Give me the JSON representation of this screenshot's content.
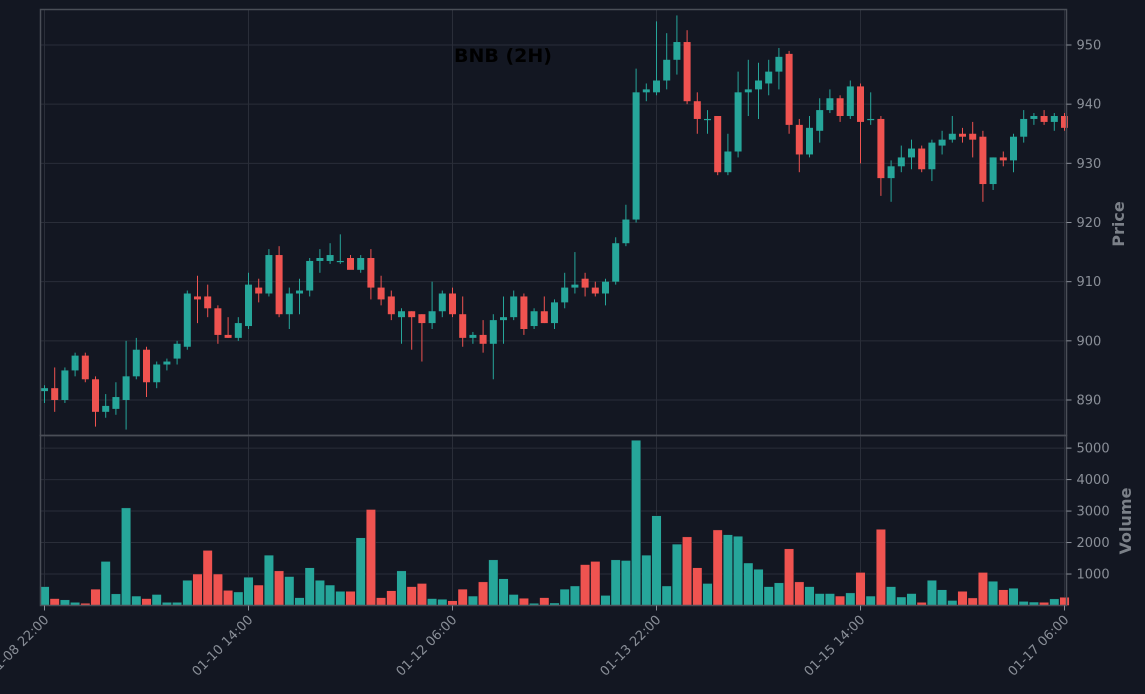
{
  "chart_data": {
    "type": "candlestick",
    "title": "BNB (2H)",
    "colors": {
      "background": "#131722",
      "up": "#26a69a",
      "down": "#ef5350",
      "grid": "#2a2e39",
      "axis": "#8a8f98",
      "frame": "#4a4e57"
    },
    "price_axis": {
      "label": "Price",
      "ylim": [
        884,
        956
      ],
      "ticks": [
        890,
        900,
        910,
        920,
        930,
        940,
        950
      ]
    },
    "volume_axis": {
      "label": "Volume",
      "ylim": [
        0,
        5400
      ],
      "ticks": [
        1000,
        2000,
        3000,
        4000,
        5000
      ]
    },
    "x_ticks": [
      {
        "index": 0,
        "label": "01-08 22:00"
      },
      {
        "index": 20,
        "label": "01-10 14:00"
      },
      {
        "index": 40,
        "label": "01-12 06:00"
      },
      {
        "index": 60,
        "label": "01-13 22:00"
      },
      {
        "index": 80,
        "label": "01-15 14:00"
      },
      {
        "index": 100,
        "label": "01-17 06:00"
      }
    ],
    "ohlc": [
      [
        891.5,
        892.5,
        889.5,
        892.0
      ],
      [
        892.0,
        895.5,
        888.0,
        890.0
      ],
      [
        890.0,
        895.5,
        889.5,
        895.0
      ],
      [
        895.0,
        898.0,
        894.0,
        897.5
      ],
      [
        897.5,
        898.0,
        893.0,
        893.5
      ],
      [
        893.5,
        894.0,
        885.5,
        888.0
      ],
      [
        888.0,
        891.0,
        887.0,
        889.0
      ],
      [
        888.5,
        893.0,
        887.5,
        890.5
      ],
      [
        890.0,
        900.0,
        885.0,
        894.0
      ],
      [
        894.0,
        900.5,
        893.5,
        898.5
      ],
      [
        898.5,
        899.0,
        890.5,
        893.0
      ],
      [
        893.0,
        896.5,
        892.0,
        896.0
      ],
      [
        896.0,
        897.0,
        895.0,
        896.5
      ],
      [
        897.0,
        900.0,
        896.0,
        899.5
      ],
      [
        899.0,
        908.5,
        898.5,
        908.0
      ],
      [
        907.5,
        911.0,
        903.0,
        907.0
      ],
      [
        907.5,
        909.5,
        904.0,
        905.5
      ],
      [
        905.5,
        906.0,
        899.5,
        901.0
      ],
      [
        901.0,
        904.0,
        900.5,
        900.5
      ],
      [
        900.5,
        904.0,
        900.0,
        903.0
      ],
      [
        902.5,
        911.5,
        902.0,
        909.5
      ],
      [
        909.0,
        910.5,
        906.5,
        908.0
      ],
      [
        908.0,
        915.5,
        907.5,
        914.5
      ],
      [
        914.5,
        916.0,
        904.0,
        904.5
      ],
      [
        904.5,
        909.0,
        902.0,
        908.0
      ],
      [
        908.0,
        910.5,
        904.5,
        908.5
      ],
      [
        908.5,
        914.0,
        907.5,
        913.5
      ],
      [
        913.5,
        915.5,
        911.5,
        914.0
      ],
      [
        913.5,
        916.5,
        913.0,
        914.5
      ],
      [
        913.5,
        918.0,
        913.0,
        913.5
      ],
      [
        914.0,
        914.5,
        912.5,
        912.0
      ],
      [
        912.0,
        914.5,
        911.5,
        914.0
      ],
      [
        914.0,
        915.5,
        907.0,
        909.0
      ],
      [
        909.0,
        911.0,
        906.0,
        907.0
      ],
      [
        907.5,
        908.5,
        903.5,
        904.5
      ],
      [
        904.0,
        905.5,
        899.5,
        905.0
      ],
      [
        905.0,
        905.0,
        898.5,
        904.0
      ],
      [
        904.5,
        904.5,
        896.5,
        903.0
      ],
      [
        903.0,
        910.0,
        902.0,
        905.0
      ],
      [
        905.0,
        908.5,
        904.0,
        908.0
      ],
      [
        908.0,
        909.0,
        904.0,
        904.5
      ],
      [
        904.5,
        907.5,
        899.0,
        900.5
      ],
      [
        900.5,
        901.5,
        899.5,
        901.0
      ],
      [
        901.0,
        903.5,
        898.0,
        899.5
      ],
      [
        899.5,
        904.5,
        893.5,
        903.5
      ],
      [
        903.5,
        907.5,
        899.5,
        904.0
      ],
      [
        904.0,
        908.5,
        903.5,
        907.5
      ],
      [
        907.5,
        908.0,
        901.0,
        902.0
      ],
      [
        902.5,
        905.5,
        902.0,
        905.0
      ],
      [
        905.0,
        907.5,
        903.0,
        903.0
      ],
      [
        903.0,
        907.0,
        902.0,
        906.5
      ],
      [
        906.5,
        911.5,
        905.5,
        909.0
      ],
      [
        909.0,
        915.0,
        908.0,
        909.5
      ],
      [
        910.5,
        911.5,
        907.5,
        909.0
      ],
      [
        909.0,
        910.0,
        907.5,
        908.0
      ],
      [
        908.0,
        910.5,
        906.0,
        910.0
      ],
      [
        910.0,
        917.5,
        909.5,
        916.5
      ],
      [
        916.5,
        923.0,
        916.0,
        920.5
      ],
      [
        920.5,
        946.0,
        920.0,
        942.0
      ],
      [
        942.0,
        943.5,
        940.5,
        942.5
      ],
      [
        942.0,
        954.0,
        941.5,
        944.0
      ],
      [
        944.0,
        952.0,
        942.5,
        947.5
      ],
      [
        947.5,
        955.0,
        945.0,
        950.5
      ],
      [
        950.5,
        952.5,
        940.0,
        940.5
      ],
      [
        940.5,
        942.0,
        935.0,
        937.5
      ],
      [
        937.5,
        939.0,
        935.0,
        937.5
      ],
      [
        938.0,
        938.0,
        928.0,
        928.5
      ],
      [
        928.5,
        935.0,
        928.0,
        932.0
      ],
      [
        932.0,
        945.5,
        931.0,
        942.0
      ],
      [
        942.0,
        947.5,
        938.0,
        942.5
      ],
      [
        942.5,
        947.0,
        937.5,
        944.0
      ],
      [
        943.5,
        947.5,
        941.5,
        945.5
      ],
      [
        945.5,
        949.5,
        942.5,
        948.0
      ],
      [
        948.5,
        949.0,
        935.0,
        936.5
      ],
      [
        936.5,
        937.5,
        928.5,
        931.5
      ],
      [
        931.5,
        938.0,
        931.0,
        936.0
      ],
      [
        935.5,
        941.0,
        933.5,
        939.0
      ],
      [
        939.0,
        942.5,
        938.5,
        941.0
      ],
      [
        941.0,
        941.5,
        937.0,
        938.0
      ],
      [
        938.0,
        944.0,
        937.5,
        943.0
      ],
      [
        943.0,
        943.5,
        930.0,
        937.0
      ],
      [
        937.5,
        942.0,
        936.5,
        937.5
      ],
      [
        937.5,
        938.0,
        924.5,
        927.5
      ],
      [
        927.5,
        930.5,
        923.5,
        929.5
      ],
      [
        929.5,
        933.0,
        928.5,
        931.0
      ],
      [
        931.0,
        934.0,
        929.0,
        932.5
      ],
      [
        932.5,
        933.0,
        928.5,
        929.0
      ],
      [
        929.0,
        934.0,
        927.0,
        933.5
      ],
      [
        933.0,
        935.5,
        931.5,
        934.0
      ],
      [
        934.0,
        938.0,
        933.5,
        935.0
      ],
      [
        935.0,
        936.0,
        933.5,
        934.5
      ],
      [
        935.0,
        937.0,
        931.0,
        934.0
      ],
      [
        934.5,
        935.5,
        923.5,
        926.5
      ],
      [
        926.5,
        931.0,
        925.5,
        931.0
      ],
      [
        931.0,
        932.0,
        929.5,
        930.5
      ],
      [
        930.5,
        935.0,
        928.5,
        934.5
      ],
      [
        934.5,
        939.0,
        933.5,
        937.5
      ],
      [
        937.5,
        938.5,
        936.5,
        938.0
      ],
      [
        938.0,
        939.0,
        936.5,
        937.0
      ],
      [
        937.0,
        938.5,
        935.5,
        938.0
      ],
      [
        938.0,
        938.5,
        935.5,
        936.0
      ]
    ],
    "volume": [
      600,
      220,
      180,
      100,
      70,
      520,
      1400,
      370,
      3100,
      300,
      220,
      350,
      100,
      100,
      800,
      1000,
      1750,
      1000,
      480,
      430,
      900,
      650,
      1600,
      1100,
      920,
      250,
      1200,
      800,
      650,
      450,
      450,
      2150,
      3050,
      250,
      470,
      1100,
      600,
      700,
      220,
      200,
      150,
      520,
      300,
      750,
      1450,
      850,
      350,
      230,
      70,
      250,
      80,
      520,
      620,
      1300,
      1400,
      320,
      1450,
      1430,
      5250,
      1600,
      2850,
      620,
      1950,
      2180,
      1200,
      700,
      2400,
      2250,
      2200,
      1350,
      1150,
      600,
      720,
      1800,
      750,
      600,
      380,
      380,
      300,
      400,
      1050,
      300,
      2420,
      600,
      270,
      380,
      100,
      800,
      500,
      160,
      450,
      240,
      1050,
      770,
      500,
      550,
      130,
      110,
      100,
      210,
      260
    ]
  }
}
